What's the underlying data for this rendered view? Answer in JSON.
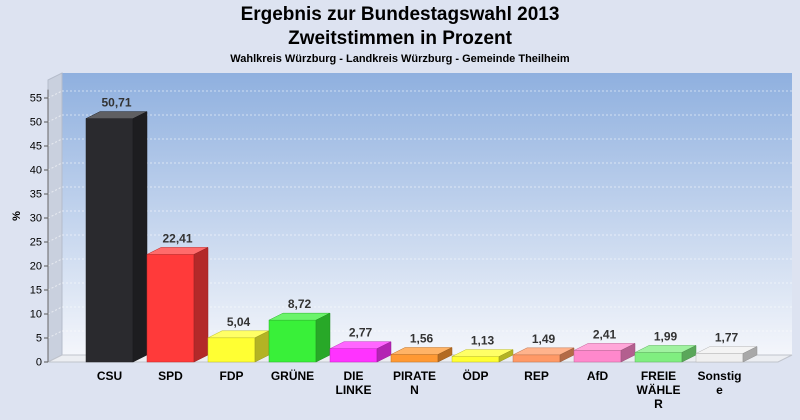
{
  "chart_data": {
    "type": "bar",
    "title": "Ergebnis zur Bundestagswahl 2013",
    "subtitle": "Zweitstimmen in Prozent",
    "caption": "Wahlkreis Würzburg - Landkreis Würzburg - Gemeinde Theilheim",
    "ylabel": "%",
    "ylim": [
      0,
      58
    ],
    "yticks": [
      "0",
      "5",
      "10",
      "15",
      "20",
      "25",
      "30",
      "35",
      "40",
      "45",
      "50",
      "55"
    ],
    "grid": true,
    "categories": [
      [
        "CSU"
      ],
      [
        "SPD"
      ],
      [
        "FDP"
      ],
      [
        "GRÜNE"
      ],
      [
        "DIE",
        "LINKE"
      ],
      [
        "PIRATE",
        "N"
      ],
      [
        "ÖDP"
      ],
      [
        "REP"
      ],
      [
        "AfD"
      ],
      [
        "FREIE",
        "WÄHLE",
        "R"
      ],
      [
        "Sonstig",
        "e"
      ]
    ],
    "values": [
      50.71,
      22.41,
      5.04,
      8.72,
      2.77,
      1.56,
      1.13,
      1.49,
      2.41,
      1.99,
      1.77
    ],
    "value_labels": [
      "50,71",
      "22,41",
      "5,04",
      "8,72",
      "2,77",
      "1,56",
      "1,13",
      "1,49",
      "2,41",
      "1,99",
      "1,77"
    ],
    "colors": [
      "#2a2a2e",
      "#ff3a3a",
      "#ffff33",
      "#39f039",
      "#ff33ff",
      "#ff9933",
      "#ffff33",
      "#ff9966",
      "#ff88cc",
      "#80ee80",
      "#f0f0f0"
    ]
  }
}
